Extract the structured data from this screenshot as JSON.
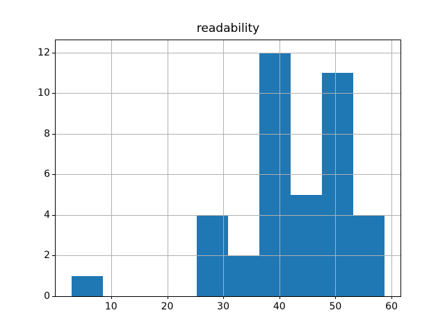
{
  "chart_data": {
    "type": "bar",
    "subtype": "histogram",
    "title": "readability",
    "xlabel": "",
    "ylabel": "",
    "bin_edges": [
      2.9,
      8.5,
      14.1,
      19.7,
      25.3,
      30.9,
      36.4,
      42.0,
      47.6,
      53.2,
      58.8
    ],
    "counts": [
      1,
      0,
      0,
      0,
      4,
      2,
      12,
      5,
      11,
      4
    ],
    "xlim": [
      0.1,
      61.6
    ],
    "ylim": [
      0,
      12.6
    ],
    "x_ticks": [
      10,
      20,
      30,
      40,
      50,
      60
    ],
    "y_ticks": [
      0,
      2,
      4,
      6,
      8,
      10,
      12
    ],
    "grid": true,
    "grid_above_bars": true,
    "legend": "none",
    "bar_color": "#1f77b4",
    "grid_color": "#b0b0b0",
    "spine_color": "#000000",
    "background_color": "#ffffff"
  }
}
